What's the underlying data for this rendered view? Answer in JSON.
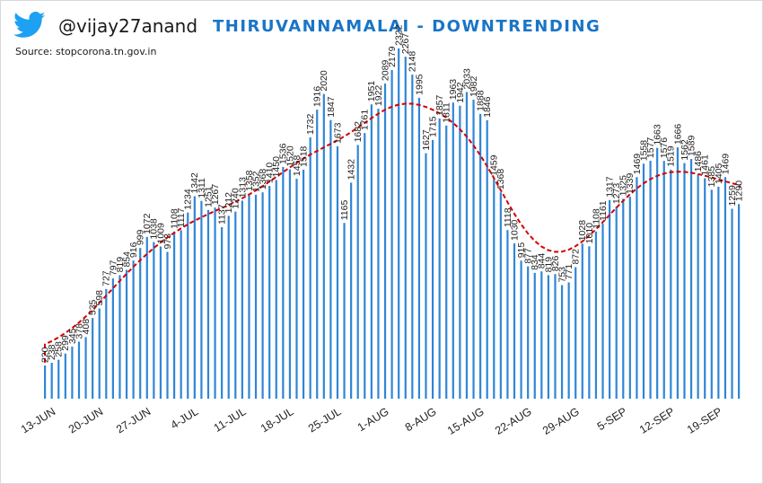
{
  "header": {
    "handle": "@vijay27anand",
    "title": "THIRUVANNAMALAI - DOWNTRENDING",
    "source": "Source: stopcorona.tn.gov.in",
    "logo": "twitter-bird-icon"
  },
  "colors": {
    "bar": "#2f86d6",
    "trend": "#d40000",
    "title": "#1a75c6",
    "logo": "#1da1f2"
  },
  "chart_data": {
    "type": "bar",
    "title": "THIRUVANNAMALAI - DOWNTRENDING",
    "xlabel": "",
    "ylabel": "",
    "ylim": [
      0,
      2500
    ],
    "x_tick_labels": [
      "13-JUN",
      "20-JUN",
      "27-JUN",
      "4-JUL",
      "11-JUL",
      "18-JUL",
      "25-JUL",
      "1-AUG",
      "8-AUG",
      "15-AUG",
      "22-AUG",
      "29-AUG",
      "5-SEP",
      "12-SEP",
      "19-SEP"
    ],
    "x_tick_every": 7,
    "values": [
      220,
      238,
      258,
      299,
      345,
      378,
      408,
      535,
      598,
      727,
      797,
      819,
      854,
      916,
      999,
      1072,
      1038,
      1009,
      973,
      1108,
      1117,
      1234,
      1342,
      1311,
      1251,
      1267,
      1137,
      1212,
      1240,
      1313,
      1358,
      1352,
      1368,
      1410,
      1450,
      1536,
      1520,
      1458,
      1518,
      1732,
      1916,
      2020,
      1847,
      1673,
      1165,
      1432,
      1682,
      1761,
      1951,
      1922,
      2089,
      2179,
      2322,
      2267,
      2148,
      1995,
      1627,
      1715,
      1857,
      1811,
      1963,
      1942,
      2033,
      1982,
      1888,
      1846,
      1459,
      1368,
      1118,
      1030,
      915,
      877,
      834,
      844,
      819,
      826,
      753,
      771,
      872,
      1028,
      1010,
      1108,
      1161,
      1317,
      1273,
      1325,
      1339,
      1469,
      1558,
      1577,
      1663,
      1576,
      1519,
      1666,
      1562,
      1589,
      1486,
      1461,
      1385,
      1405,
      1469,
      1259,
      1290
    ],
    "trend": "polynomial fit (dashed red)"
  }
}
